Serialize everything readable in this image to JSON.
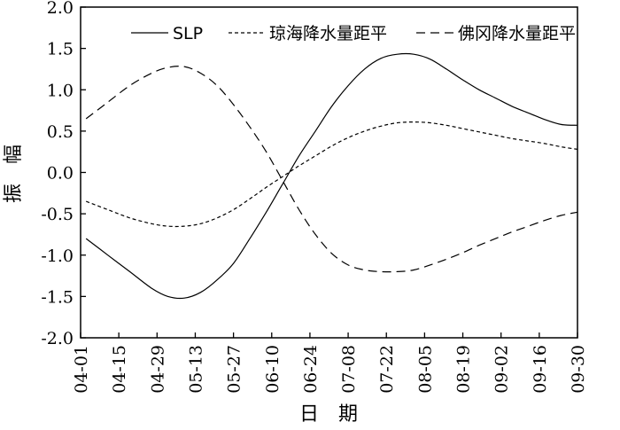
{
  "chart_data": {
    "type": "line",
    "xlabel": "日　期",
    "ylabel": "振　幅",
    "ylim": [
      -2.0,
      2.0
    ],
    "yticks": [
      "2.0",
      "1.5",
      "1.0",
      "0.5",
      "0.0",
      "-0.5",
      "-1.0",
      "-1.5",
      "-2.0"
    ],
    "ytick_values": [
      2.0,
      1.5,
      1.0,
      0.5,
      0.0,
      -0.5,
      -1.0,
      -1.5,
      -2.0
    ],
    "xticks": [
      "04-01",
      "04-15",
      "04-29",
      "05-13",
      "05-27",
      "06-10",
      "06-24",
      "07-08",
      "07-22",
      "08-05",
      "08-19",
      "09-02",
      "09-16",
      "09-30"
    ],
    "x_tick_values": [
      0,
      14,
      28,
      42,
      56,
      70,
      84,
      98,
      112,
      126,
      140,
      154,
      168,
      182
    ],
    "x_unit_note": "",
    "grid": false,
    "legend_position": "top-right",
    "series": [
      {
        "name": "SLP",
        "style": "solid",
        "color": "#000000",
        "x": [
          2,
          10,
          18,
          26,
          32,
          38,
          44,
          50,
          56,
          62,
          68,
          74,
          80,
          86,
          92,
          98,
          104,
          110,
          116,
          122,
          128,
          134,
          140,
          146,
          152,
          158,
          164,
          170,
          176,
          182
        ],
        "y": [
          -0.8,
          -1.0,
          -1.2,
          -1.4,
          -1.5,
          -1.52,
          -1.45,
          -1.3,
          -1.1,
          -0.8,
          -0.48,
          -0.14,
          0.2,
          0.5,
          0.8,
          1.05,
          1.25,
          1.38,
          1.43,
          1.43,
          1.37,
          1.25,
          1.12,
          1.0,
          0.9,
          0.8,
          0.72,
          0.64,
          0.58,
          0.57
        ]
      },
      {
        "name": "琼海降水量距平",
        "style": "dotted",
        "color": "#000000",
        "x": [
          2,
          10,
          18,
          26,
          32,
          38,
          44,
          50,
          56,
          62,
          68,
          74,
          80,
          86,
          92,
          98,
          104,
          110,
          116,
          122,
          128,
          134,
          140,
          146,
          152,
          158,
          164,
          170,
          176,
          182
        ],
        "y": [
          -0.35,
          -0.45,
          -0.55,
          -0.62,
          -0.65,
          -0.65,
          -0.62,
          -0.55,
          -0.45,
          -0.32,
          -0.18,
          -0.05,
          0.08,
          0.2,
          0.32,
          0.42,
          0.5,
          0.56,
          0.6,
          0.61,
          0.6,
          0.57,
          0.53,
          0.49,
          0.45,
          0.41,
          0.38,
          0.35,
          0.31,
          0.28
        ]
      },
      {
        "name": "佛冈降水量距平",
        "style": "dashed",
        "color": "#000000",
        "x": [
          2,
          10,
          18,
          26,
          32,
          38,
          44,
          50,
          56,
          62,
          68,
          74,
          80,
          86,
          92,
          98,
          104,
          110,
          116,
          122,
          128,
          134,
          140,
          146,
          152,
          158,
          164,
          170,
          176,
          182
        ],
        "y": [
          0.65,
          0.85,
          1.05,
          1.2,
          1.27,
          1.28,
          1.2,
          1.05,
          0.82,
          0.55,
          0.25,
          -0.1,
          -0.45,
          -0.75,
          -0.98,
          -1.12,
          -1.18,
          -1.2,
          -1.2,
          -1.18,
          -1.12,
          -1.05,
          -0.97,
          -0.88,
          -0.8,
          -0.72,
          -0.65,
          -0.58,
          -0.52,
          -0.48
        ]
      }
    ]
  }
}
